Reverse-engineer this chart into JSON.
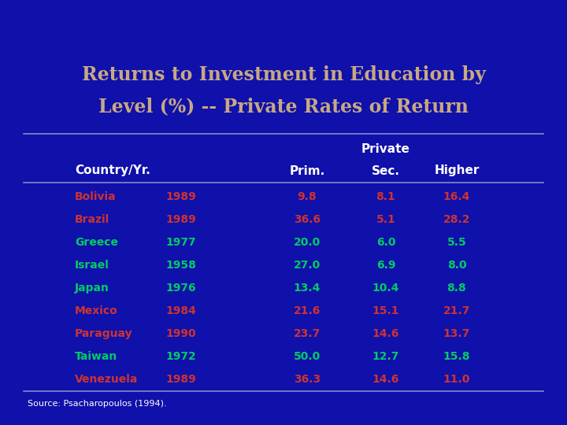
{
  "title_line1": "Returns to Investment in Education by",
  "title_line2": "Level (%) -- Private Rates of Return",
  "title_color": "#C8A882",
  "bg_color": "#1010AA",
  "bg_color_dark": "#000080",
  "subheader": "Private",
  "rows": [
    {
      "country": "Bolivia",
      "year": "1989",
      "prim": "9.8",
      "sec": "8.1",
      "higher": "16.4",
      "color": "#CC3333"
    },
    {
      "country": "Brazil",
      "year": "1989",
      "prim": "36.6",
      "sec": "5.1",
      "higher": "28.2",
      "color": "#CC3333"
    },
    {
      "country": "Greece",
      "year": "1977",
      "prim": "20.0",
      "sec": "6.0",
      "higher": "5.5",
      "color": "#00CC66"
    },
    {
      "country": "Israel",
      "year": "1958",
      "prim": "27.0",
      "sec": "6.9",
      "higher": "8.0",
      "color": "#00CC66"
    },
    {
      "country": "Japan",
      "year": "1976",
      "prim": "13.4",
      "sec": "10.4",
      "higher": "8.8",
      "color": "#00CC66"
    },
    {
      "country": "Mexico",
      "year": "1984",
      "prim": "21.6",
      "sec": "15.1",
      "higher": "21.7",
      "color": "#CC3333"
    },
    {
      "country": "Paraguay",
      "year": "1990",
      "prim": "23.7",
      "sec": "14.6",
      "higher": "13.7",
      "color": "#CC3333"
    },
    {
      "country": "Taiwan",
      "year": "1972",
      "prim": "50.0",
      "sec": "12.7",
      "higher": "15.8",
      "color": "#00CC66"
    },
    {
      "country": "Venezuela",
      "year": "1989",
      "prim": "36.3",
      "sec": "14.6",
      "higher": "11.0",
      "color": "#CC3333"
    }
  ],
  "source": "Source: Psacharopoulos (1994).",
  "source_color": "#FFFFFF",
  "header_color": "#FFFFFF",
  "line_color": "#8888CC",
  "arc_color": "#9999DD",
  "wedge_color": "#000060"
}
